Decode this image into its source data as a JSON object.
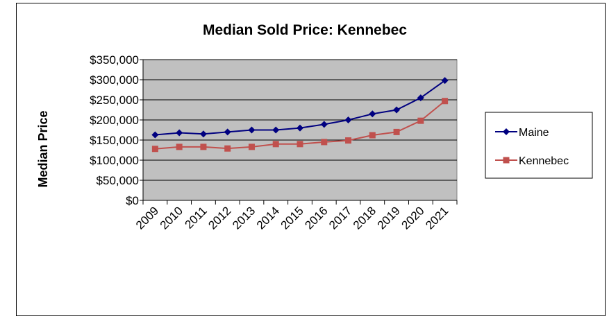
{
  "chart_data": {
    "type": "line",
    "title": "Median Sold Price: Kennebec",
    "ylabel": "Median Price",
    "xlabel": "",
    "categories": [
      "2009",
      "2010",
      "2011",
      "2012",
      "2013",
      "2014",
      "2015",
      "2016",
      "2017",
      "2018",
      "2019",
      "2020",
      "2021"
    ],
    "ylim": [
      0,
      350000
    ],
    "yticks": [
      0,
      50000,
      100000,
      150000,
      200000,
      250000,
      300000,
      350000
    ],
    "ytick_labels": [
      "$0",
      "$50,000",
      "$100,000",
      "$150,000",
      "$200,000",
      "$250,000",
      "$300,000",
      "$350,000"
    ],
    "grid": true,
    "plot_background": "#c0c0c0",
    "legend_position": "right",
    "series": [
      {
        "name": "Maine",
        "color": "#000080",
        "marker": "diamond",
        "values": [
          163000,
          168000,
          165000,
          170000,
          175000,
          175000,
          180000,
          189000,
          200000,
          215000,
          225000,
          255000,
          298000
        ]
      },
      {
        "name": "Kennebec",
        "color": "#c0504d",
        "marker": "square",
        "values": [
          128000,
          133000,
          133000,
          129000,
          133000,
          140000,
          140000,
          145000,
          149000,
          162000,
          170000,
          198000,
          247000
        ]
      }
    ]
  }
}
